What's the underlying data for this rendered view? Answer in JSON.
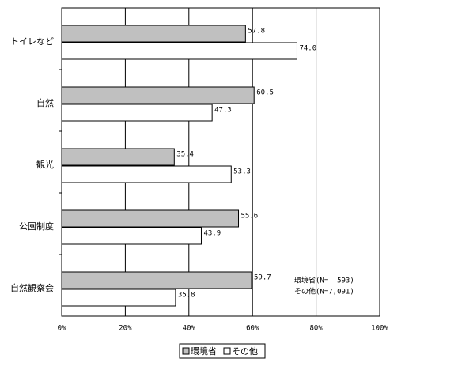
{
  "chart_data": {
    "type": "bar",
    "orientation": "horizontal",
    "categories": [
      "トイレなど",
      "自然",
      "観光",
      "公園制度",
      "自然観察会"
    ],
    "series": [
      {
        "name": "環境省",
        "color": "#c0c0c0",
        "values": [
          57.8,
          60.5,
          35.4,
          55.6,
          59.7
        ],
        "value_labels": [
          "57.8",
          "60.5",
          "35.4",
          "55.6",
          "59.7"
        ]
      },
      {
        "name": "その他",
        "color": "#ffffff",
        "values": [
          74.0,
          47.3,
          53.3,
          43.9,
          35.8
        ],
        "value_labels": [
          "74.0",
          "47.3",
          "53.3",
          "43.9",
          "35.8"
        ]
      }
    ],
    "xlim": [
      0,
      100
    ],
    "xticks": [
      {
        "value": 0,
        "label": "0%"
      },
      {
        "value": 20,
        "label": "20%"
      },
      {
        "value": 40,
        "label": "40%"
      },
      {
        "value": 60,
        "label": "60%"
      },
      {
        "value": 80,
        "label": "80%"
      },
      {
        "value": 100,
        "label": "100%"
      }
    ],
    "grid": true,
    "legend": "bottom",
    "annotations": [
      "環境省(N=  593)",
      "その他(N=7,091)"
    ]
  }
}
